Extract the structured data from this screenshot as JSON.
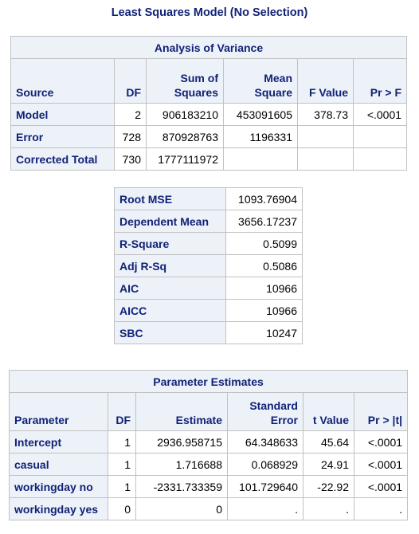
{
  "title": "Least Squares Model (No Selection)",
  "anova": {
    "caption": "Analysis of Variance",
    "headers": {
      "source": "Source",
      "df": "DF",
      "ss1": "Sum of",
      "ss2": "Squares",
      "ms1": "Mean",
      "ms2": "Square",
      "f": "F Value",
      "p": "Pr > F"
    },
    "rows": [
      {
        "source": "Model",
        "df": "2",
        "ss": "906183210",
        "ms": "453091605",
        "f": "378.73",
        "p": "<.0001"
      },
      {
        "source": "Error",
        "df": "728",
        "ss": "870928763",
        "ms": "1196331",
        "f": "",
        "p": ""
      },
      {
        "source": "Corrected Total",
        "df": "730",
        "ss": "1777111972",
        "ms": "",
        "f": "",
        "p": ""
      }
    ]
  },
  "fit": {
    "rows": [
      {
        "label": "Root MSE",
        "value": "1093.76904"
      },
      {
        "label": "Dependent Mean",
        "value": "3656.17237"
      },
      {
        "label": "R-Square",
        "value": "0.5099"
      },
      {
        "label": "Adj R-Sq",
        "value": "0.5086"
      },
      {
        "label": "AIC",
        "value": "10966"
      },
      {
        "label": "AICC",
        "value": "10966"
      },
      {
        "label": "SBC",
        "value": "10247"
      }
    ]
  },
  "estimates": {
    "caption": "Parameter Estimates",
    "headers": {
      "param": "Parameter",
      "df": "DF",
      "est": "Estimate",
      "se1": "Standard",
      "se2": "Error",
      "t": "t Value",
      "p": "Pr > |t|"
    },
    "rows": [
      {
        "param": "Intercept",
        "df": "1",
        "est": "2936.958715",
        "se": "64.348633",
        "t": "45.64",
        "p": "<.0001"
      },
      {
        "param": "casual",
        "df": "1",
        "est": "1.716688",
        "se": "0.068929",
        "t": "24.91",
        "p": "<.0001"
      },
      {
        "param": "workingday no",
        "df": "1",
        "est": "-2331.733359",
        "se": "101.729640",
        "t": "-22.92",
        "p": "<.0001"
      },
      {
        "param": "workingday yes",
        "df": "0",
        "est": "0",
        "se": ".",
        "t": ".",
        "p": "."
      }
    ]
  }
}
